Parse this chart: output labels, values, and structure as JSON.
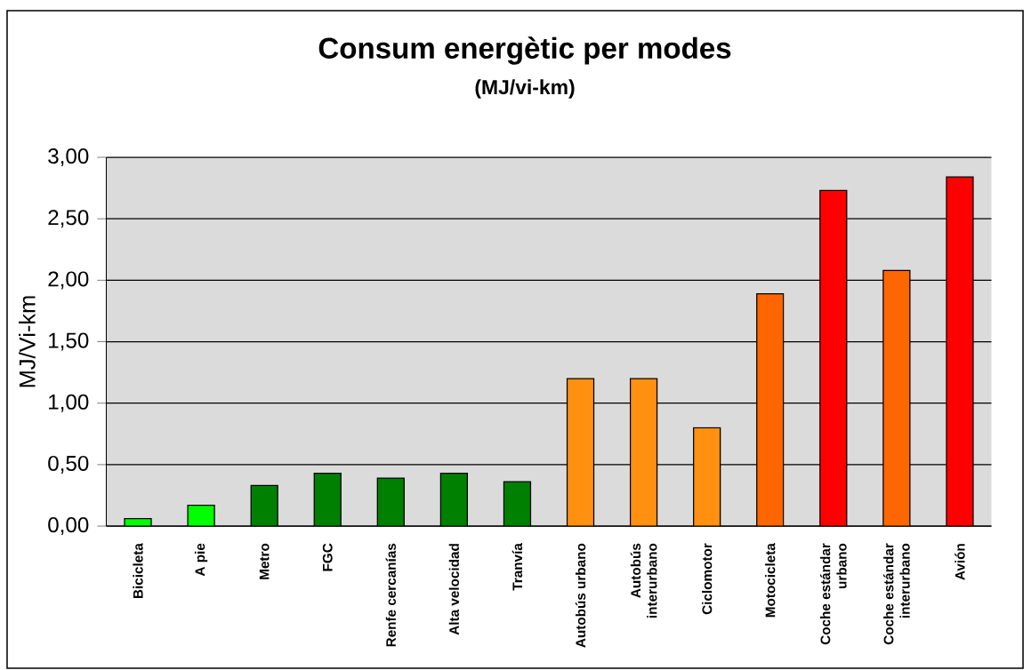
{
  "chart_data": {
    "type": "bar",
    "title": "Consum energètic per modes",
    "subtitle": "(MJ/vi-km)",
    "ylabel": "MJ/Vi-km",
    "categories": [
      "Bicicleta",
      "A pie",
      "Metro",
      "FGC",
      "Renfe cercanías",
      "Alta velocidad",
      "Tranvía",
      "Autobús urbano",
      "Autobús interurbano",
      "Ciclomotor",
      "Motocicleta",
      "Coche estándar urbano",
      "Coche estándar interurbano",
      "Avión"
    ],
    "values": [
      0.06,
      0.17,
      0.33,
      0.43,
      0.39,
      0.43,
      0.36,
      1.2,
      1.2,
      0.8,
      1.89,
      2.73,
      2.08,
      2.84
    ],
    "colors": [
      "#00ff00",
      "#00ff00",
      "#008000",
      "#008000",
      "#008000",
      "#008000",
      "#008000",
      "#ff9010",
      "#ff9010",
      "#ff9010",
      "#ff6600",
      "#ff0000",
      "#ff6600",
      "#ff0000"
    ],
    "ylim": [
      0,
      3
    ],
    "yticks": [
      {
        "value": 0,
        "label": "0,00"
      },
      {
        "value": 0.5,
        "label": "0,50"
      },
      {
        "value": 1,
        "label": "1,00"
      },
      {
        "value": 1.5,
        "label": "1,50"
      },
      {
        "value": 2,
        "label": "2,00"
      },
      {
        "value": 2.5,
        "label": "2,50"
      },
      {
        "value": 3,
        "label": "3,00"
      }
    ],
    "grid": "y"
  }
}
